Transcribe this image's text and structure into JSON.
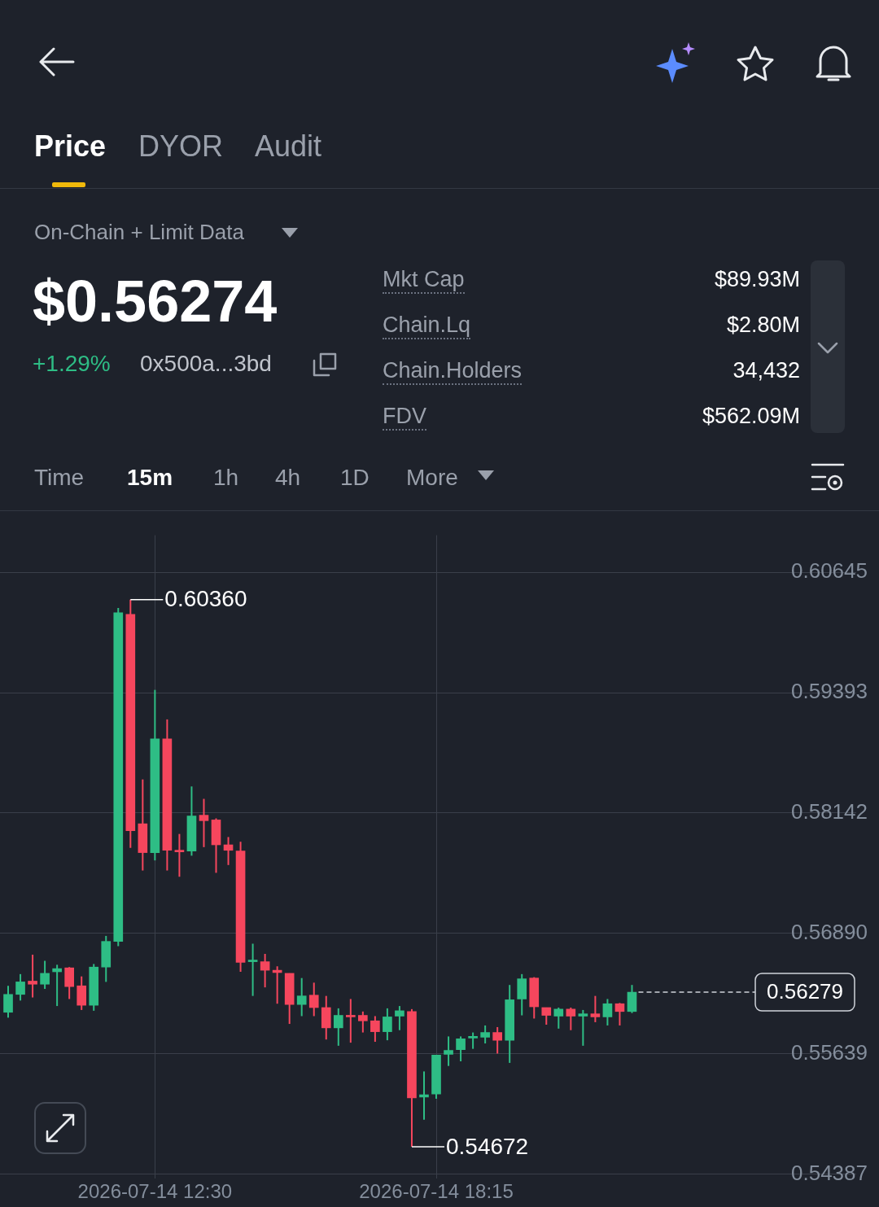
{
  "chart_data": {
    "type": "candlestick",
    "x": [
      "2026-07-14T09:30",
      "2026-07-14T09:45",
      "2026-07-14T10:00",
      "2026-07-14T10:15",
      "2026-07-14T10:30",
      "2026-07-14T10:45",
      "2026-07-14T11:00",
      "2026-07-14T11:15",
      "2026-07-14T11:30",
      "2026-07-14T11:45",
      "2026-07-14T12:00",
      "2026-07-14T12:15",
      "2026-07-14T12:30",
      "2026-07-14T12:45",
      "2026-07-14T13:00",
      "2026-07-14T13:15",
      "2026-07-14T13:30",
      "2026-07-14T13:45",
      "2026-07-14T14:00",
      "2026-07-14T14:15",
      "2026-07-14T14:30",
      "2026-07-14T14:45",
      "2026-07-14T15:00",
      "2026-07-14T15:15",
      "2026-07-14T15:30",
      "2026-07-14T15:45",
      "2026-07-14T16:00",
      "2026-07-14T16:15",
      "2026-07-14T16:30",
      "2026-07-14T16:45",
      "2026-07-14T17:00",
      "2026-07-14T17:15",
      "2026-07-14T17:30",
      "2026-07-14T17:45",
      "2026-07-14T18:00",
      "2026-07-14T18:15",
      "2026-07-14T18:30",
      "2026-07-14T18:45",
      "2026-07-14T19:00",
      "2026-07-14T19:15",
      "2026-07-14T19:30",
      "2026-07-14T19:45",
      "2026-07-14T20:00",
      "2026-07-14T20:15",
      "2026-07-14T20:30",
      "2026-07-14T20:45",
      "2026-07-14T21:00",
      "2026-07-14T21:15",
      "2026-07-14T21:30",
      "2026-07-14T21:45",
      "2026-07-14T22:00",
      "2026-07-14T22:15"
    ],
    "ohlc": [
      [
        0.5607,
        0.56345,
        0.56014,
        0.56256
      ],
      [
        0.56256,
        0.56467,
        0.56192,
        0.56386
      ],
      [
        0.56394,
        0.56669,
        0.56224,
        0.56362
      ],
      [
        0.56362,
        0.56605,
        0.56313,
        0.56475
      ],
      [
        0.56491,
        0.56564,
        0.56135,
        0.56524
      ],
      [
        0.56532,
        0.5654,
        0.56208,
        0.56337
      ],
      [
        0.56345,
        0.56443,
        0.56094,
        0.56143
      ],
      [
        0.56143,
        0.56572,
        0.56086,
        0.5654
      ],
      [
        0.5654,
        0.56864,
        0.56386,
        0.56807
      ],
      [
        0.56807,
        0.60273,
        0.56758,
        0.60224
      ],
      [
        0.60208,
        0.6036,
        0.57779,
        0.57957
      ],
      [
        0.5803,
        0.58491,
        0.57544,
        0.5773
      ],
      [
        0.5773,
        0.59422,
        0.57649,
        0.58912
      ],
      [
        0.58912,
        0.59115,
        0.57544,
        0.57754
      ],
      [
        0.57754,
        0.57924,
        0.57479,
        0.57738
      ],
      [
        0.57746,
        0.58418,
        0.57698,
        0.58111
      ],
      [
        0.58119,
        0.58289,
        0.57787,
        0.58062
      ],
      [
        0.5807,
        0.58086,
        0.5752,
        0.57811
      ],
      [
        0.57811,
        0.57892,
        0.57601,
        0.57754
      ],
      [
        0.57746,
        0.57843,
        0.56491,
        0.56588
      ],
      [
        0.56596,
        0.56783,
        0.5624,
        0.56613
      ],
      [
        0.56596,
        0.56677,
        0.56329,
        0.56507
      ],
      [
        0.56507,
        0.56548,
        0.56159,
        0.56483
      ],
      [
        0.56475,
        0.56475,
        0.55949,
        0.56151
      ],
      [
        0.56151,
        0.56426,
        0.5603,
        0.5624
      ],
      [
        0.56248,
        0.56378,
        0.5603,
        0.56119
      ],
      [
        0.56119,
        0.5624,
        0.55787,
        0.55908
      ],
      [
        0.55908,
        0.56111,
        0.55722,
        0.56038
      ],
      [
        0.56038,
        0.56208,
        0.55754,
        0.56022
      ],
      [
        0.56038,
        0.56078,
        0.5586,
        0.55981
      ],
      [
        0.55981,
        0.5603,
        0.55763,
        0.55868
      ],
      [
        0.55868,
        0.56111,
        0.55779,
        0.56022
      ],
      [
        0.5603,
        0.56135,
        0.55884,
        0.56086
      ],
      [
        0.56078,
        0.56103,
        0.54672,
        0.5518
      ],
      [
        0.55188,
        0.55455,
        0.54953,
        0.55212
      ],
      [
        0.5522,
        0.55625,
        0.55171,
        0.55625
      ],
      [
        0.55633,
        0.55819,
        0.55512,
        0.55673
      ],
      [
        0.55682,
        0.55819,
        0.5556,
        0.55795
      ],
      [
        0.55803,
        0.5586,
        0.5569,
        0.55819
      ],
      [
        0.55811,
        0.55933,
        0.55746,
        0.5586
      ],
      [
        0.5586,
        0.55916,
        0.55641,
        0.55779
      ],
      [
        0.55779,
        0.56354,
        0.55544,
        0.562
      ],
      [
        0.56208,
        0.56467,
        0.56038,
        0.56418
      ],
      [
        0.56426,
        0.56435,
        0.56005,
        0.56127
      ],
      [
        0.56119,
        0.56119,
        0.55941,
        0.56038
      ],
      [
        0.5603,
        0.56119,
        0.559,
        0.56103
      ],
      [
        0.56103,
        0.56119,
        0.55884,
        0.5603
      ],
      [
        0.5603,
        0.56094,
        0.55722,
        0.56054
      ],
      [
        0.56054,
        0.5624,
        0.55967,
        0.56022
      ],
      [
        0.56022,
        0.56208,
        0.55933,
        0.56159
      ],
      [
        0.56159,
        0.56167,
        0.55933,
        0.56078
      ],
      [
        0.56078,
        0.56354,
        0.56062,
        0.56279
      ]
    ],
    "colors": [
      "#2ebd85",
      "#2ebd85",
      "#f6465d",
      "#2ebd85",
      "#2ebd85",
      "#f6465d",
      "#f6465d",
      "#2ebd85",
      "#2ebd85",
      "#2ebd85",
      "#f6465d",
      "#f6465d",
      "#2ebd85",
      "#f6465d",
      "#f6465d",
      "#2ebd85",
      "#f6465d",
      "#f6465d",
      "#f6465d",
      "#f6465d",
      "#2ebd85",
      "#f6465d",
      "#f6465d",
      "#f6465d",
      "#2ebd85",
      "#f6465d",
      "#f6465d",
      "#2ebd85",
      "#f6465d",
      "#f6465d",
      "#f6465d",
      "#2ebd85",
      "#2ebd85",
      "#f6465d",
      "#2ebd85",
      "#2ebd85",
      "#2ebd85",
      "#2ebd85",
      "#2ebd85",
      "#2ebd85",
      "#f6465d",
      "#2ebd85",
      "#2ebd85",
      "#f6465d",
      "#f6465d",
      "#2ebd85",
      "#f6465d",
      "#2ebd85",
      "#f6465d",
      "#2ebd85",
      "#f6465d",
      "#2ebd85"
    ],
    "xlim": [
      "2026-07-14T09:20",
      "2026-07-15T02:50"
    ],
    "xticks": [
      {
        "value": "2026-07-14T12:30",
        "label": "2026-07-14 12:30"
      },
      {
        "value": "2026-07-14T18:15",
        "label": "2026-07-14 18:15"
      }
    ],
    "ylim": [
      0.5434,
      0.6103
    ],
    "yticks": [
      0.60645,
      0.59393,
      0.58142,
      {
        "value": 0.5689,
        "label": "0.56890"
      },
      0.55639,
      0.54387
    ],
    "grid": true,
    "ref_lines": [
      {
        "axis": "y",
        "value": 0.56279,
        "label": "0.56279",
        "color": "#cfd3da",
        "line_style": "dashed"
      }
    ],
    "annotations": [
      "Price",
      "DYOR",
      "Audit",
      "On-Chain + Limit Data",
      "$0.56274",
      "+1.29%",
      "0x500a...3bd",
      "Mkt Cap",
      "$89.93M",
      "Chain.Lq",
      "$2.80M",
      "Chain.Holders",
      "34,432",
      "FDV",
      "$562.09M",
      "Time",
      "15m",
      "1h",
      "4h",
      "1D",
      "More",
      {
        "text": "0.60360",
        "x": "2026-07-14T12:00",
        "y": 0.6036
      },
      {
        "text": "0.54672",
        "x": "2026-07-14T17:45",
        "y": 0.54672
      }
    ]
  }
}
